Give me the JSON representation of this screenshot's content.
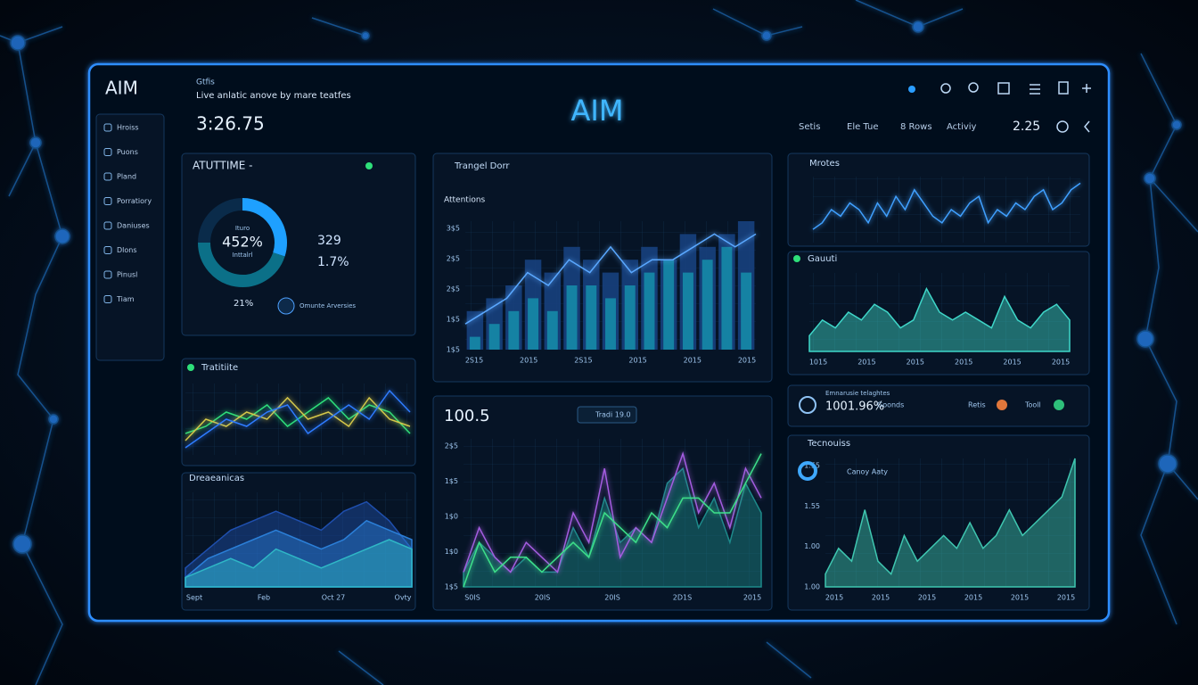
{
  "header": {
    "logo": "AIM",
    "small_label": "Gtfis",
    "subtitle": "Live anlatic anove by mare teatfes",
    "clock": "3:26.75",
    "title": "AIM",
    "nav": [
      "Setis",
      "Ele Tue",
      "8 Rows",
      "Activiy"
    ],
    "nav_value": "2.25"
  },
  "sidebar": [
    "Hroiss",
    "Puons",
    "Pland",
    "Porratiory",
    "Daniuses",
    "Dlons",
    "Pinusl",
    "Tiam"
  ],
  "donut": {
    "title": "ATUTTIME -",
    "center_top": "Ituro",
    "center_value": "452%",
    "center_label": "Inttalrl",
    "segments": [
      {
        "value": 30,
        "color": "#1ea0ff"
      },
      {
        "value": 45,
        "color": "#0b7088"
      },
      {
        "value": 25,
        "color": "#0a2b4a"
      }
    ],
    "stats": [
      "329",
      "1.7%"
    ],
    "foot_value": "21%",
    "note": "Omunte Arversies"
  },
  "charts": [
    {
      "type": "line",
      "title": "Tratitiite",
      "ylim": [
        0,
        10
      ],
      "series": [
        {
          "color": "#2ee07a",
          "values": [
            3,
            4,
            6,
            5,
            7,
            4,
            6,
            8,
            5,
            7,
            6,
            3
          ]
        },
        {
          "color": "#d6c84a",
          "values": [
            2,
            5,
            4,
            6,
            5,
            8,
            5,
            6,
            4,
            8,
            5,
            4
          ]
        },
        {
          "color": "#2f7bff",
          "values": [
            1,
            3,
            5,
            4,
            6,
            7,
            3,
            5,
            7,
            5,
            9,
            6
          ]
        }
      ]
    },
    {
      "type": "area",
      "title": "Dreaeanicas",
      "ylim": [
        0,
        10
      ],
      "xlabels": [
        "Sept",
        "Feb",
        "Oct 27",
        "Ovty"
      ],
      "series": [
        {
          "color": "#1f4fae",
          "values": [
            2,
            4,
            6,
            7,
            8,
            7,
            6,
            8,
            9,
            7,
            4
          ]
        },
        {
          "color": "#2b7fd8",
          "values": [
            1,
            3,
            4,
            5,
            6,
            5,
            4,
            5,
            7,
            6,
            5
          ]
        },
        {
          "color": "#2fb7c6",
          "values": [
            1,
            2,
            3,
            2,
            4,
            3,
            2,
            3,
            4,
            5,
            4
          ]
        }
      ]
    },
    {
      "type": "bar",
      "title": "Trangel Dorr",
      "legend": "Attentions",
      "ylim": [
        0,
        10
      ],
      "ytick_labels": [
        "3$5",
        "2$5",
        "2$5",
        "1$5",
        "1$5"
      ],
      "xlabels": [
        "2S15",
        "2015",
        "2S15",
        "2015",
        "2015",
        "2015"
      ],
      "series": [
        {
          "color": "#17407e",
          "values": [
            3,
            4,
            5,
            7,
            6,
            8,
            7,
            6,
            7,
            8,
            7,
            9,
            8,
            9,
            10
          ]
        },
        {
          "color": "#158aa8",
          "values": [
            1,
            2,
            3,
            4,
            3,
            5,
            5,
            4,
            5,
            6,
            7,
            6,
            7,
            8,
            6
          ]
        },
        {
          "color": "#5aa8ff",
          "mark": "line",
          "values": [
            2,
            3,
            4,
            6,
            5,
            7,
            6,
            8,
            6,
            7,
            7,
            8,
            9,
            8,
            9
          ]
        }
      ]
    },
    {
      "type": "line",
      "title": "100.5",
      "button": "Tradi 19.0",
      "ylim": [
        0,
        10
      ],
      "ytick_labels": [
        "2$5",
        "1$5",
        "1$0",
        "1$0",
        "1$5"
      ],
      "xlabels": [
        "S0IS",
        "20IS",
        "20IS",
        "2D1S",
        "2015"
      ],
      "series": [
        {
          "color": "#1d8a8a",
          "mark": "area",
          "values": [
            1,
            3,
            2,
            1,
            2,
            1,
            1,
            4,
            2,
            6,
            3,
            4,
            3,
            7,
            8,
            4,
            6,
            3,
            7,
            5
          ]
        },
        {
          "color": "#a45ce0",
          "values": [
            1,
            4,
            2,
            1,
            3,
            2,
            1,
            5,
            3,
            8,
            2,
            4,
            3,
            6,
            9,
            5,
            7,
            4,
            8,
            6
          ]
        },
        {
          "color": "#3ee08a",
          "values": [
            0,
            3,
            1,
            2,
            2,
            1,
            2,
            3,
            2,
            5,
            4,
            3,
            5,
            4,
            6,
            6,
            5,
            5,
            7,
            9
          ]
        }
      ]
    },
    {
      "type": "line",
      "title": "Mrotes",
      "ylim": [
        0,
        10
      ],
      "series": [
        {
          "color": "#3fa0ff",
          "values": [
            2,
            3,
            5,
            4,
            6,
            5,
            3,
            6,
            4,
            7,
            5,
            8,
            6,
            4,
            3,
            5,
            4,
            6,
            7,
            3,
            5,
            4,
            6,
            5,
            7,
            8,
            5,
            6,
            8,
            9
          ]
        }
      ]
    },
    {
      "type": "area",
      "title": "Gauuti",
      "ylim": [
        0,
        10
      ],
      "xlabels": [
        "1015",
        "2015",
        "2015",
        "2015",
        "2015",
        "2015"
      ],
      "series": [
        {
          "color": "#3fd6c8",
          "values": [
            2,
            4,
            3,
            5,
            4,
            6,
            5,
            3,
            4,
            8,
            5,
            4,
            5,
            4,
            3,
            7,
            4,
            3,
            5,
            6,
            4
          ]
        }
      ]
    },
    {
      "type": "area",
      "title": "Tecnouiss",
      "subtitle": "Canoy Aaty",
      "ylim": [
        0,
        10
      ],
      "ytick_labels": [
        "1.55",
        "1.55",
        "1.00",
        "1.00"
      ],
      "xlabels": [
        "2015",
        "2015",
        "2015",
        "2015",
        "2015",
        "2015"
      ],
      "series": [
        {
          "color": "#3fc6b0",
          "values": [
            1,
            3,
            2,
            6,
            2,
            1,
            4,
            2,
            3,
            4,
            3,
            5,
            3,
            4,
            6,
            4,
            5,
            6,
            7,
            10
          ]
        }
      ]
    }
  ],
  "strip": {
    "caption": "Emnarusie telaghtes",
    "value": "1001.96%",
    "items": [
      "Goonds",
      "Retis",
      "Tooll"
    ]
  }
}
